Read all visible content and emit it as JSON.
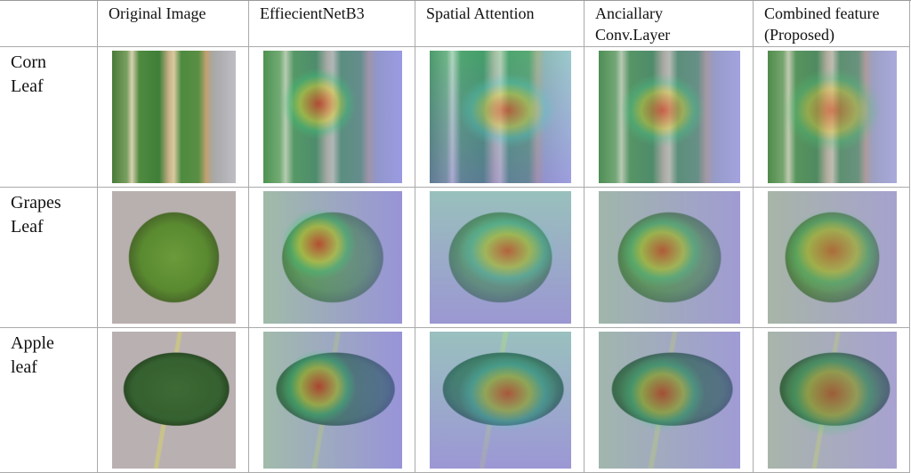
{
  "table": {
    "header": [
      "Original Image",
      "EffiecientNetB3",
      "Spatial Attention",
      "Anciallary Conv.Layer",
      "Combined feature (Proposed)"
    ],
    "rows": [
      {
        "label": "Corn Leaf"
      },
      {
        "label": "Grapes Leaf"
      },
      {
        "label": "Apple leaf"
      }
    ]
  }
}
